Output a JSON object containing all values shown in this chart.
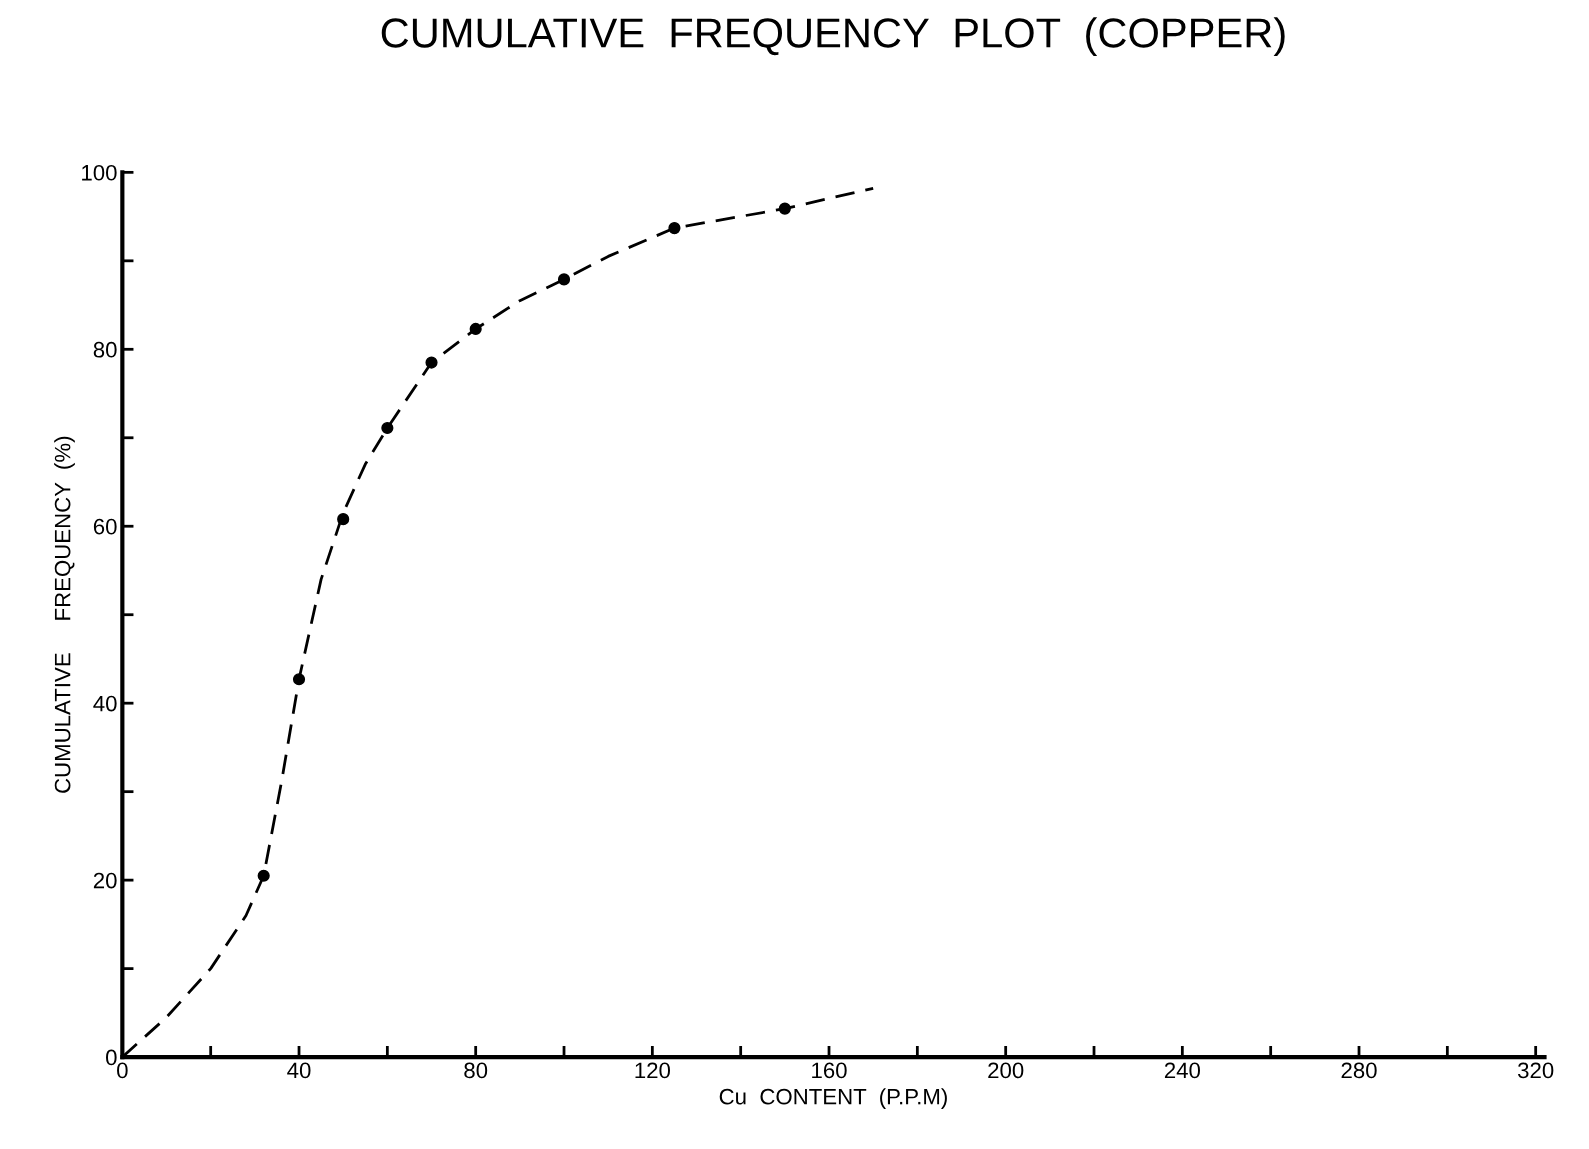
{
  "chart_data": {
    "type": "scatter",
    "title": "CUMULATIVE  FREQUENCY  PLOT  (COPPER)",
    "xlabel": "Cu  CONTENT  (P.P.M)",
    "ylabel": "CUMULATIVE     FREQUENCY  (%)",
    "xlim": [
      0,
      322
    ],
    "ylim": [
      0,
      100
    ],
    "xticks": [
      0,
      {
        "value": 20,
        "label": null
      },
      40,
      {
        "value": 60,
        "label": null
      },
      80,
      {
        "value": 100,
        "label": null
      },
      120,
      {
        "value": 140,
        "label": null
      },
      160,
      {
        "value": 180,
        "label": null
      },
      200,
      {
        "value": 220,
        "label": null
      },
      240,
      {
        "value": 260,
        "label": null
      },
      280,
      {
        "value": 300,
        "label": null
      },
      320
    ],
    "yticks": [
      0,
      {
        "value": 10,
        "label": null
      },
      20,
      {
        "value": 30,
        "label": null
      },
      40,
      {
        "value": 50,
        "label": null
      },
      60,
      {
        "value": 70,
        "label": null
      },
      80,
      {
        "value": 90,
        "label": null
      },
      100
    ],
    "grid": false,
    "legend": false,
    "series": [
      {
        "type": "line",
        "color": "#000000",
        "line_style": "dashed",
        "marker": "none",
        "x": [
          0,
          10,
          20,
          28,
          32,
          36,
          40,
          45,
          50,
          55,
          60,
          70,
          80,
          90,
          100,
          110,
          125,
          150,
          170
        ],
        "values": [
          0,
          4.5,
          10,
          16,
          20.5,
          31,
          42.7,
          54,
          61.5,
          67,
          71.1,
          78.5,
          82.3,
          85.5,
          87.9,
          90.5,
          93.7,
          95.9,
          98.2
        ]
      },
      {
        "color": "#000000",
        "marker": "circle",
        "x": [
          32,
          40,
          50,
          60,
          70,
          80,
          100,
          125,
          150
        ],
        "values": [
          20.5,
          42.7,
          60.8,
          71.1,
          78.5,
          82.3,
          87.9,
          93.7,
          95.9
        ]
      }
    ]
  }
}
